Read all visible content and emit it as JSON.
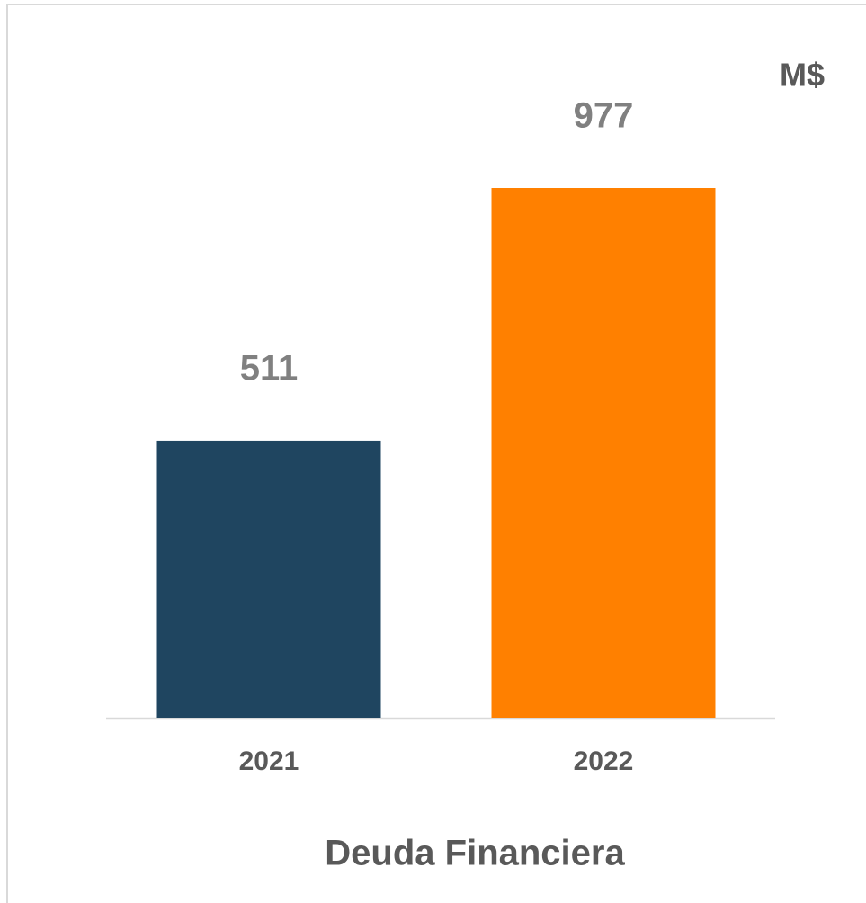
{
  "chart_data": {
    "type": "bar",
    "title": "Deuda Financiera",
    "unit_label": "M$",
    "categories": [
      "2021",
      "2022"
    ],
    "values": [
      511,
      977
    ],
    "colors": [
      "#1f4560",
      "#ff8000"
    ]
  }
}
